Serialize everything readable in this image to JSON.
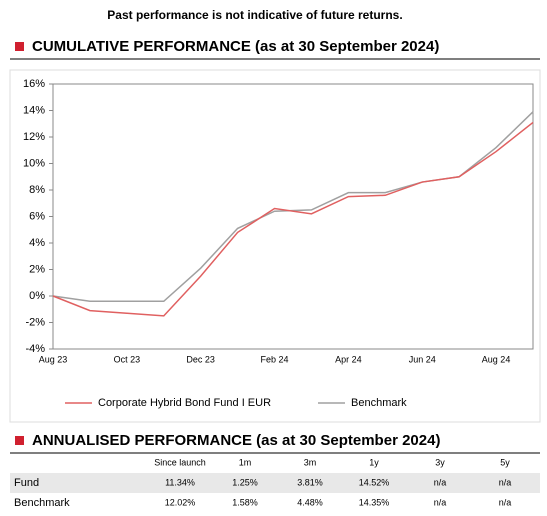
{
  "disclaimer": "Past performance is not indicative of future returns.",
  "chart_data": {
    "type": "line",
    "title": "CUMULATIVE PERFORMANCE (as at 30 September 2024)",
    "categories": [
      "Aug 23",
      null,
      "Oct 23",
      null,
      "Dec 23",
      null,
      "Feb 24",
      null,
      "Apr 24",
      null,
      "Jun 24",
      null,
      "Aug 24",
      null
    ],
    "series": [
      {
        "name": "Corporate Hybrid Bond Fund I EUR",
        "color": "#e06060",
        "values": [
          0,
          -1.1,
          -1.3,
          -1.5,
          1.5,
          4.8,
          6.6,
          6.2,
          7.5,
          7.6,
          8.6,
          9.0,
          10.9,
          13.1
        ]
      },
      {
        "name": "Benchmark",
        "color": "#a0a0a0",
        "values": [
          0,
          -0.4,
          -0.4,
          -0.4,
          2.1,
          5.1,
          6.4,
          6.5,
          7.8,
          7.8,
          8.6,
          9.0,
          11.2,
          13.9
        ]
      }
    ],
    "ylim": [
      -4,
      16
    ],
    "yticks": [
      {
        "value": -4,
        "label": "-4%"
      },
      {
        "value": -2,
        "label": "-2%"
      },
      {
        "value": 0,
        "label": "0%"
      },
      {
        "value": 2,
        "label": "2%"
      },
      {
        "value": 4,
        "label": "4%"
      },
      {
        "value": 6,
        "label": "6%"
      },
      {
        "value": 8,
        "label": "8%"
      },
      {
        "value": 10,
        "label": "10%"
      },
      {
        "value": 12,
        "label": "12%"
      },
      {
        "value": 14,
        "label": "14%"
      },
      {
        "value": 16,
        "label": "16%"
      }
    ],
    "grid": false,
    "legend": "bottom"
  },
  "table": {
    "title": "ANNUALISED PERFORMANCE (as at 30 September 2024)",
    "columns": [
      "Since launch",
      "1m",
      "3m",
      "1y",
      "3y",
      "5y"
    ],
    "rows": [
      [
        "Fund",
        "11.34%",
        "1.25%",
        "3.81%",
        "14.52%",
        "n/a",
        "n/a"
      ],
      [
        "Benchmark",
        "12.02%",
        "1.58%",
        "4.48%",
        "14.35%",
        "n/a",
        "n/a"
      ]
    ]
  }
}
